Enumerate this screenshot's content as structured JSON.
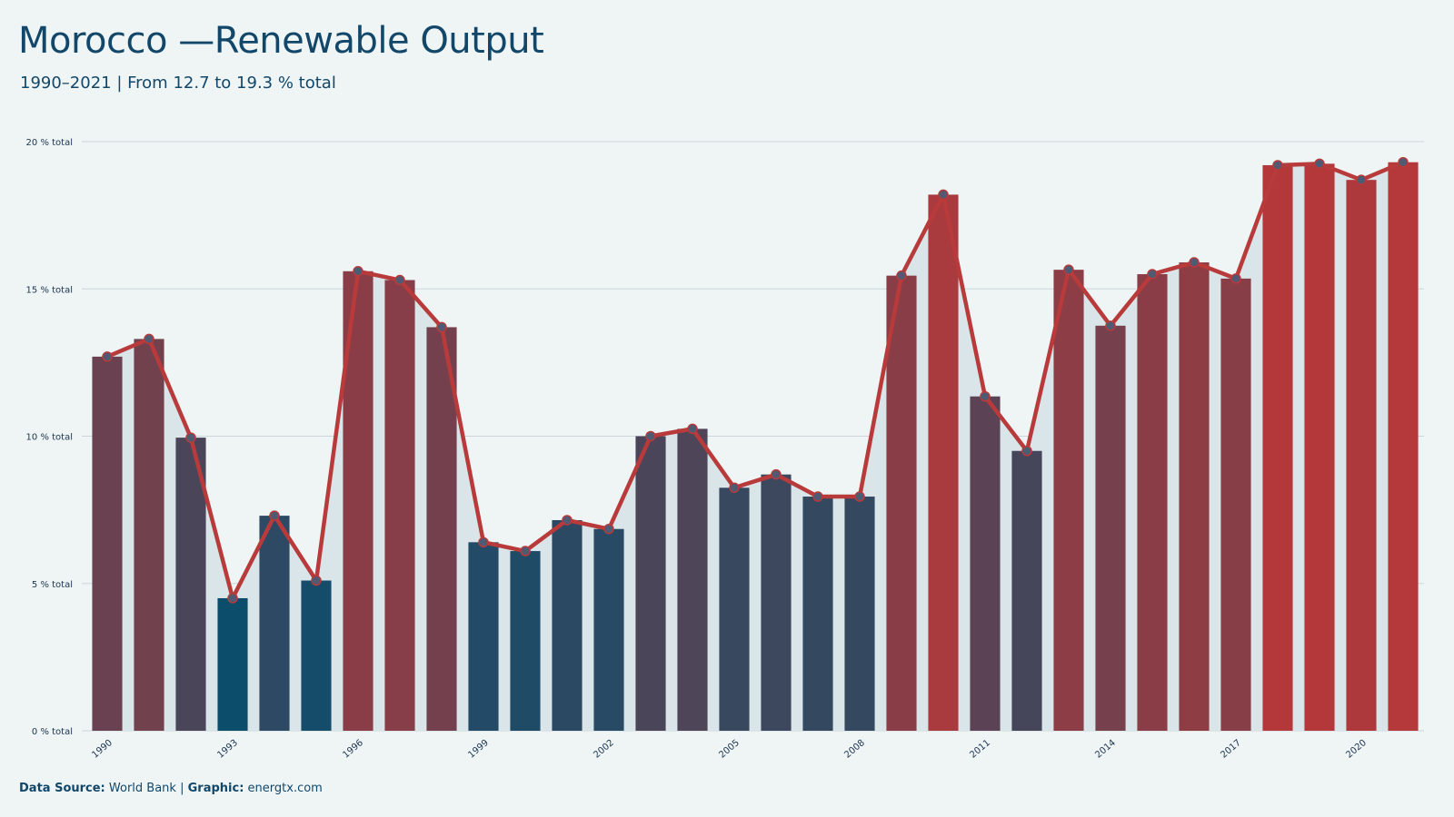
{
  "header": {
    "title": "Morocco —Renewable Output",
    "subtitle": "1990–2021 | From 12.7 to 19.3 % total"
  },
  "footer": {
    "source_label": "Data Source:",
    "source_value": "World Bank",
    "separator": "|",
    "graphic_label": "Graphic:",
    "graphic_value": "energtx.com"
  },
  "colors": {
    "background": "#eff5f5",
    "low": "#0d4d6c",
    "high": "#b5383a",
    "line": "#b83a3a",
    "area": "#d9e5e8",
    "gridline": "#ccd5d9",
    "text": "#12476a"
  },
  "chart_data": {
    "type": "bar",
    "title": "Morocco —Renewable Output",
    "subtitle": "1990–2021 | From 12.7 to 19.3 % total",
    "x": [
      1990,
      1991,
      1992,
      1993,
      1994,
      1995,
      1996,
      1997,
      1998,
      1999,
      2000,
      2001,
      2002,
      2003,
      2004,
      2005,
      2006,
      2007,
      2008,
      2009,
      2010,
      2011,
      2012,
      2013,
      2014,
      2015,
      2016,
      2017,
      2018,
      2019,
      2020,
      2021
    ],
    "values": [
      12.7,
      13.3,
      9.95,
      4.5,
      7.3,
      5.1,
      15.6,
      15.3,
      13.7,
      6.4,
      6.1,
      7.15,
      6.85,
      10.0,
      10.25,
      8.25,
      8.7,
      7.95,
      7.95,
      15.45,
      18.2,
      11.35,
      9.5,
      15.65,
      13.75,
      15.5,
      15.9,
      15.35,
      19.2,
      19.25,
      18.7,
      19.3
    ],
    "ylim": [
      0,
      20
    ],
    "y_ticks": [
      {
        "value": 0,
        "label": "0 % total"
      },
      {
        "value": 5,
        "label": "5 % total"
      },
      {
        "value": 10,
        "label": "10 % total"
      },
      {
        "value": 15,
        "label": "15 % total"
      },
      {
        "value": 20,
        "label": "20 % total"
      }
    ],
    "x_tick_labels": [
      "1990",
      "1993",
      "1996",
      "1999",
      "2002",
      "2005",
      "2008",
      "2011",
      "2014",
      "2017",
      "2020"
    ],
    "grid": true,
    "overlay": "line-with-markers-and-area"
  }
}
